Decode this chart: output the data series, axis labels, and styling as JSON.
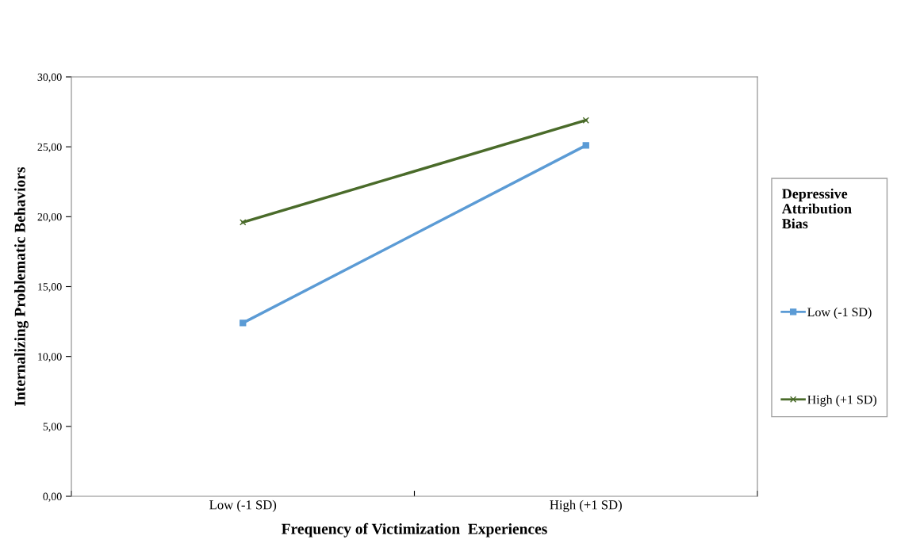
{
  "chart_data": {
    "type": "line",
    "xlabel": "Frequency of Victimization  Experiences",
    "ylabel": "Internalizing Problematic Behaviors",
    "legend_title": "Depressive\nAttribution\nBias",
    "categories": [
      "Low (-1 SD)",
      "High (+1 SD)"
    ],
    "series": [
      {
        "name": "Low (-1 SD)",
        "color": "#5b9bd5",
        "values": [
          12.4,
          25.1
        ],
        "marker": "square"
      },
      {
        "name": "High (+1 SD)",
        "color": "#4a6b2a",
        "values": [
          19.6,
          26.9
        ],
        "marker": "cross"
      }
    ],
    "ylim": [
      0,
      30
    ],
    "yticks": [
      {
        "value": 0,
        "label": "0,00"
      },
      {
        "value": 5,
        "label": "5,00"
      },
      {
        "value": 10,
        "label": "10,00"
      },
      {
        "value": 15,
        "label": "15,00"
      },
      {
        "value": 20,
        "label": "20,00"
      },
      {
        "value": 25,
        "label": "25,00"
      },
      {
        "value": 30,
        "label": "30,00"
      }
    ],
    "grid": false,
    "legend": "right",
    "line_style": "solid"
  }
}
